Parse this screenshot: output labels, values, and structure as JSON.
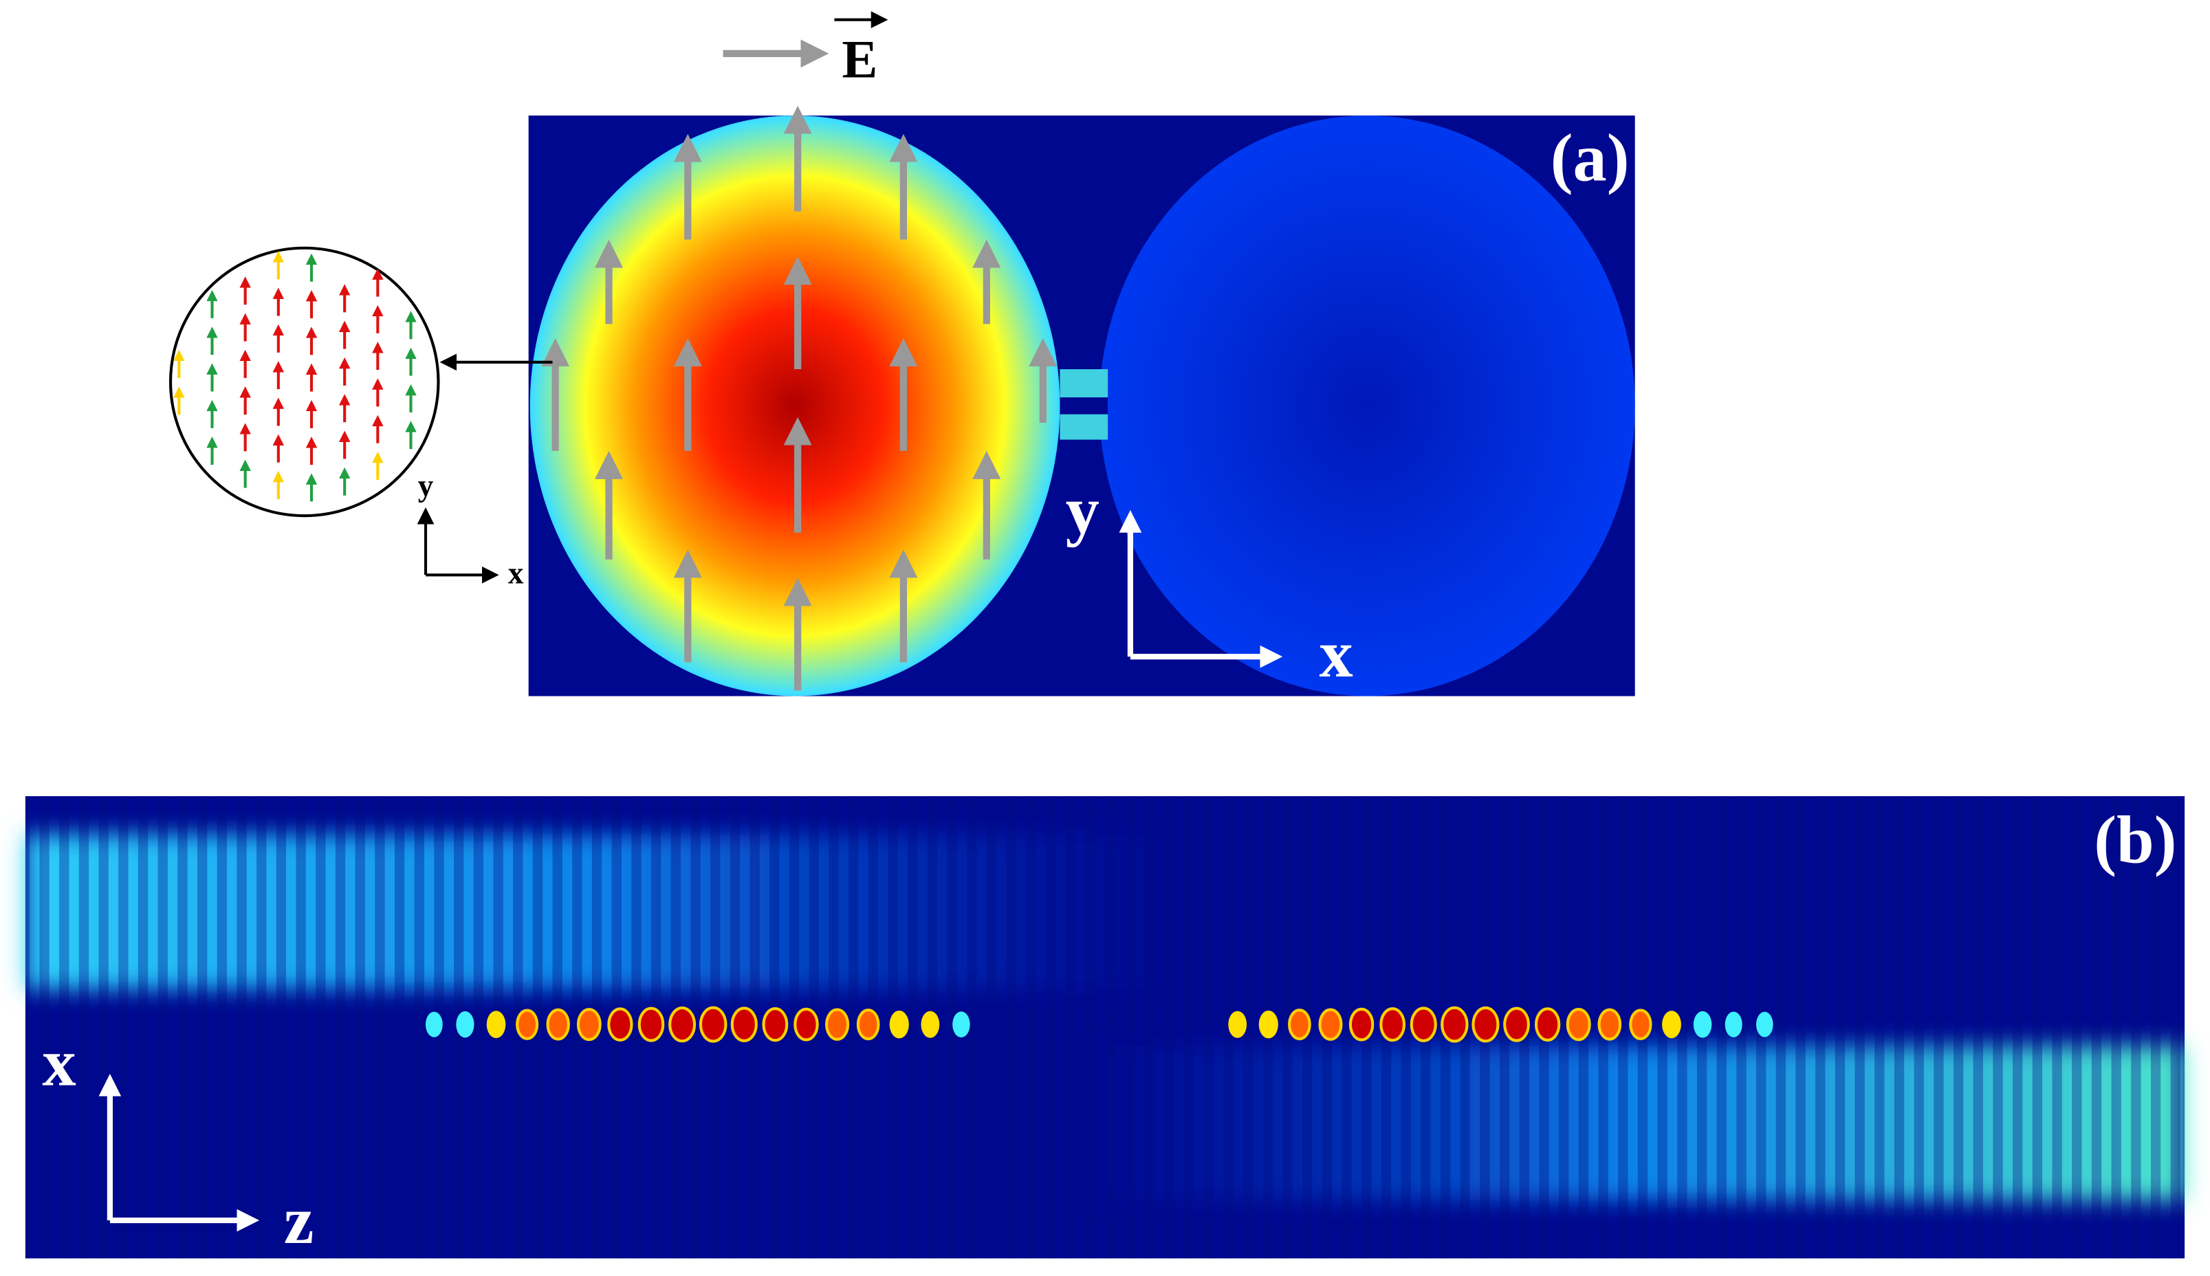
{
  "panel_a": {
    "label": "(a)",
    "field_label": "E",
    "axes": {
      "vertical": "y",
      "horizontal": "x"
    },
    "inset_axes": {
      "vertical": "y",
      "horizontal": "x"
    }
  },
  "panel_b": {
    "label": "(b)",
    "axes": {
      "vertical": "x",
      "horizontal": "z"
    }
  }
}
